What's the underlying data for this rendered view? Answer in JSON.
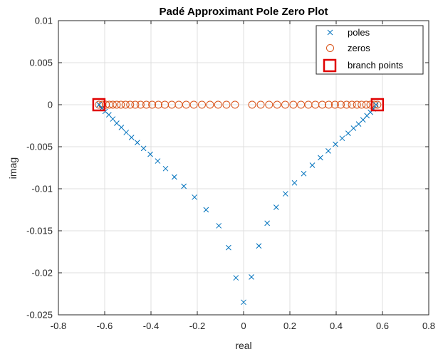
{
  "chart_data": {
    "type": "scatter",
    "title": "Padé Approximant Pole Zero Plot",
    "xlabel": "real",
    "ylabel": "imag",
    "xlim": [
      -0.8,
      0.8
    ],
    "ylim": [
      -0.025,
      0.01
    ],
    "x_ticks": [
      "-0.8",
      "-0.6",
      "-0.4",
      "-0.2",
      "0",
      "0.2",
      "0.4",
      "0.6",
      "0.8"
    ],
    "y_ticks": [
      "-0.025",
      "-0.02",
      "-0.015",
      "-0.01",
      "-0.005",
      "0",
      "0.005",
      "0.01"
    ],
    "grid": true,
    "legend_position": "top-right",
    "series": [
      {
        "name": "poles",
        "marker": "x",
        "color": "#0072bd",
        "points": [
          [
            -0.624,
            0.0
          ],
          [
            -0.612,
            -0.0004
          ],
          [
            -0.598,
            -0.0008
          ],
          [
            -0.582,
            -0.0012
          ],
          [
            -0.565,
            -0.0017
          ],
          [
            -0.548,
            -0.0022
          ],
          [
            -0.528,
            -0.0027
          ],
          [
            -0.507,
            -0.0033
          ],
          [
            -0.484,
            -0.0039
          ],
          [
            -0.459,
            -0.0045
          ],
          [
            -0.432,
            -0.0052
          ],
          [
            -0.403,
            -0.0059
          ],
          [
            -0.371,
            -0.0067
          ],
          [
            -0.337,
            -0.0076
          ],
          [
            -0.299,
            -0.0086
          ],
          [
            -0.258,
            -0.0097
          ],
          [
            -0.212,
            -0.011
          ],
          [
            -0.162,
            -0.0125
          ],
          [
            -0.107,
            -0.0144
          ],
          [
            -0.065,
            -0.017
          ],
          [
            -0.033,
            -0.0206
          ],
          [
            0.0,
            -0.0235
          ],
          [
            0.034,
            -0.0205
          ],
          [
            0.066,
            -0.0168
          ],
          [
            0.102,
            -0.0141
          ],
          [
            0.141,
            -0.0122
          ],
          [
            0.181,
            -0.0106
          ],
          [
            0.22,
            -0.0093
          ],
          [
            0.26,
            -0.0082
          ],
          [
            0.297,
            -0.0072
          ],
          [
            0.332,
            -0.0063
          ],
          [
            0.366,
            -0.0055
          ],
          [
            0.397,
            -0.0047
          ],
          [
            0.426,
            -0.004
          ],
          [
            0.452,
            -0.0034
          ],
          [
            0.475,
            -0.0028
          ],
          [
            0.497,
            -0.0023
          ],
          [
            0.516,
            -0.0018
          ],
          [
            0.533,
            -0.0013
          ],
          [
            0.548,
            -0.0009
          ],
          [
            0.561,
            -0.0005
          ],
          [
            0.572,
            0.0
          ]
        ]
      },
      {
        "name": "zeros",
        "marker": "o",
        "color": "#d95319",
        "points": [
          [
            -0.625,
            0
          ],
          [
            -0.61,
            0
          ],
          [
            -0.595,
            0
          ],
          [
            -0.58,
            0
          ],
          [
            -0.565,
            0
          ],
          [
            -0.548,
            0
          ],
          [
            -0.53,
            0
          ],
          [
            -0.51,
            0
          ],
          [
            -0.49,
            0
          ],
          [
            -0.468,
            0
          ],
          [
            -0.445,
            0
          ],
          [
            -0.42,
            0
          ],
          [
            -0.395,
            0
          ],
          [
            -0.368,
            0
          ],
          [
            -0.34,
            0
          ],
          [
            -0.31,
            0
          ],
          [
            -0.28,
            0
          ],
          [
            -0.248,
            0
          ],
          [
            -0.215,
            0
          ],
          [
            -0.18,
            0
          ],
          [
            -0.145,
            0
          ],
          [
            -0.11,
            0
          ],
          [
            -0.074,
            0
          ],
          [
            -0.037,
            0
          ],
          [
            0.037,
            0
          ],
          [
            0.074,
            0
          ],
          [
            0.11,
            0
          ],
          [
            0.145,
            0
          ],
          [
            0.18,
            0
          ],
          [
            0.215,
            0
          ],
          [
            0.248,
            0
          ],
          [
            0.28,
            0
          ],
          [
            0.31,
            0
          ],
          [
            0.34,
            0
          ],
          [
            0.368,
            0
          ],
          [
            0.395,
            0
          ],
          [
            0.42,
            0
          ],
          [
            0.445,
            0
          ],
          [
            0.468,
            0
          ],
          [
            0.49,
            0
          ],
          [
            0.51,
            0
          ],
          [
            0.53,
            0
          ],
          [
            0.548,
            0
          ],
          [
            0.565,
            0
          ],
          [
            0.578,
            0
          ]
        ]
      },
      {
        "name": "branch points",
        "marker": "square",
        "color": "#e00000",
        "points": [
          [
            -0.625,
            0
          ],
          [
            0.578,
            0
          ]
        ]
      }
    ]
  }
}
